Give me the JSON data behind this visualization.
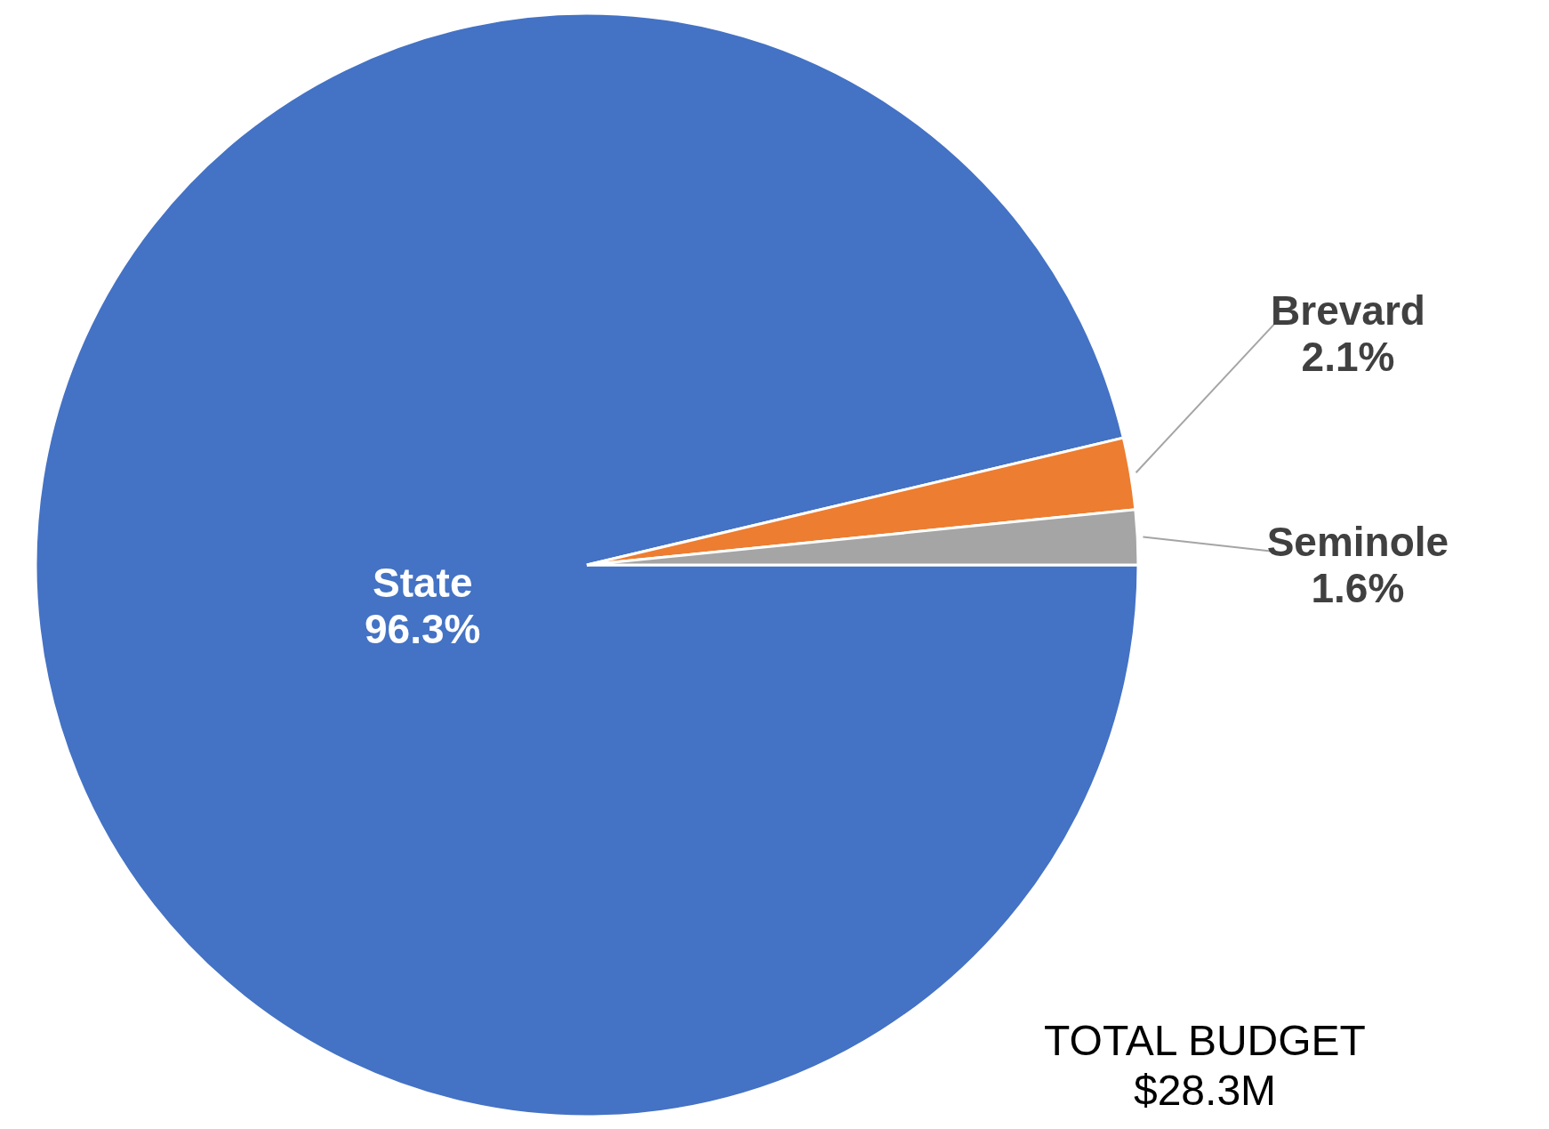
{
  "chart_data": {
    "type": "pie",
    "categories": [
      "State",
      "Brevard",
      "Seminole"
    ],
    "values": [
      96.3,
      2.1,
      1.6
    ],
    "colors": [
      "#4472c4",
      "#ed7d31",
      "#a5a5a5"
    ],
    "value_labels": [
      "96.3%",
      "2.1%",
      "1.6%"
    ],
    "annotations": [
      "TOTAL BUDGET\n$28.3M"
    ]
  }
}
